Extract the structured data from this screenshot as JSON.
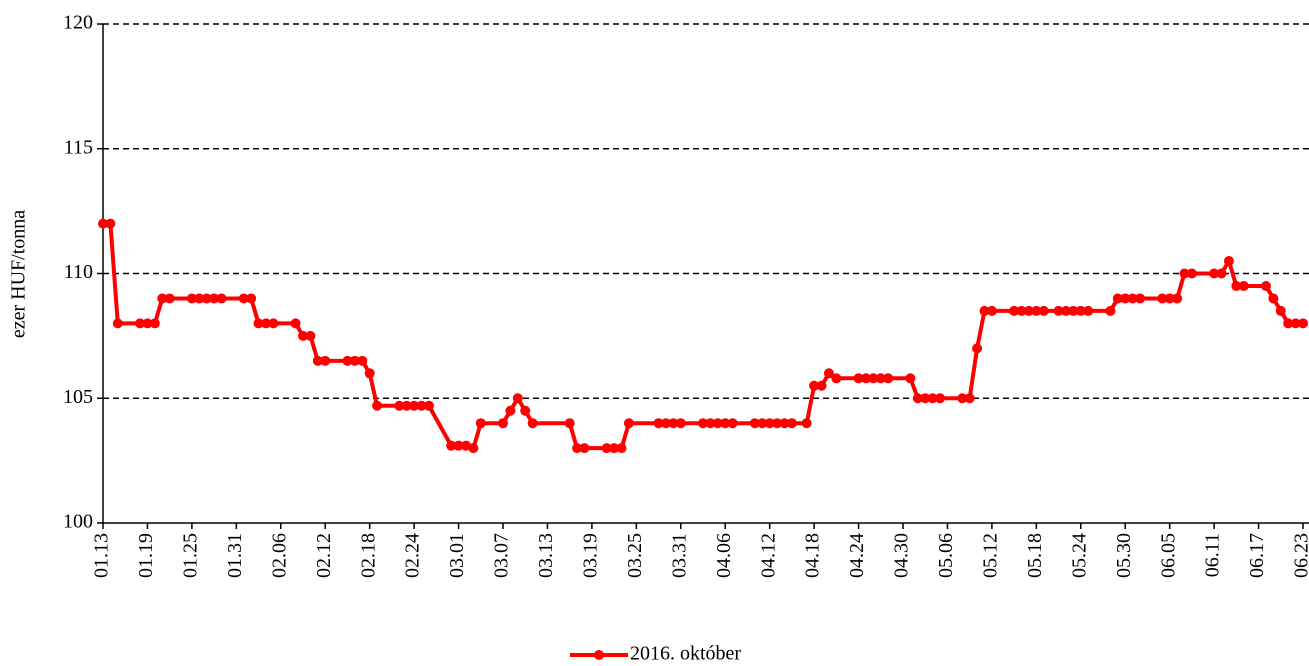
{
  "chart_data": {
    "type": "line",
    "ylabel": "ezer HUF/tonna",
    "ylim": [
      100,
      120
    ],
    "yticks": [
      100,
      105,
      110,
      115,
      120
    ],
    "grid": true,
    "legend": "bottom",
    "xticks": [
      "01.13",
      "01.19",
      "01.25",
      "01.31",
      "02.06",
      "02.12",
      "02.18",
      "02.24",
      "03.01",
      "03.07",
      "03.13",
      "03.19",
      "03.25",
      "03.31",
      "04.06",
      "04.12",
      "04.18",
      "04.24",
      "04.30",
      "05.06",
      "05.12",
      "05.18",
      "05.24",
      "05.30",
      "06.05",
      "06.11",
      "06.17",
      "06.23"
    ],
    "x": [
      "01.13",
      "01.14",
      "01.15",
      "01.18",
      "01.19",
      "01.20",
      "01.21",
      "01.22",
      "01.25",
      "01.26",
      "01.27",
      "01.28",
      "01.29",
      "02.01",
      "02.02",
      "02.03",
      "02.04",
      "02.05",
      "02.08",
      "02.09",
      "02.10",
      "02.11",
      "02.12",
      "02.15",
      "02.16",
      "02.17",
      "02.18",
      "02.19",
      "02.22",
      "02.23",
      "02.24",
      "02.25",
      "02.26",
      "02.29",
      "03.01",
      "03.02",
      "03.03",
      "03.04",
      "03.07",
      "03.08",
      "03.09",
      "03.10",
      "03.11",
      "03.16",
      "03.17",
      "03.18",
      "03.21",
      "03.22",
      "03.23",
      "03.24",
      "03.28",
      "03.29",
      "03.30",
      "03.31",
      "04.03",
      "04.04",
      "04.05",
      "04.06",
      "04.07",
      "04.10",
      "04.11",
      "04.12",
      "04.13",
      "04.14",
      "04.15",
      "04.17",
      "04.18",
      "04.19",
      "04.20",
      "04.21",
      "04.24",
      "04.25",
      "04.26",
      "04.27",
      "04.28",
      "05.01",
      "05.02",
      "05.03",
      "05.04",
      "05.05",
      "05.08",
      "05.09",
      "05.10",
      "05.11",
      "05.12",
      "05.15",
      "05.16",
      "05.17",
      "05.18",
      "05.19",
      "05.21",
      "05.22",
      "05.23",
      "05.24",
      "05.25",
      "05.28",
      "05.29",
      "05.30",
      "05.31",
      "06.01",
      "06.04",
      "06.05",
      "06.06",
      "06.07",
      "06.08",
      "06.11",
      "06.12",
      "06.13",
      "06.14",
      "06.15",
      "06.18",
      "06.19",
      "06.20",
      "06.21",
      "06.22",
      "06.23"
    ],
    "series": [
      {
        "name": "2016. október",
        "color": "#ff0000",
        "values": [
          112,
          112,
          108,
          108,
          108,
          108,
          109,
          109,
          109,
          109,
          109,
          109,
          109,
          109,
          109,
          108,
          108,
          108,
          108,
          107.5,
          107.5,
          106.5,
          106.5,
          106.5,
          106.5,
          106.5,
          106,
          104.7,
          104.7,
          104.7,
          104.7,
          104.7,
          104.7,
          103.1,
          103.1,
          103.1,
          103,
          104,
          104,
          104.5,
          105,
          104.5,
          104,
          104,
          103,
          103,
          103,
          103,
          103,
          104,
          104,
          104,
          104,
          104,
          104,
          104,
          104,
          104,
          104,
          104,
          104,
          104,
          104,
          104,
          104,
          104,
          105.5,
          105.5,
          106,
          105.8,
          105.8,
          105.8,
          105.8,
          105.8,
          105.8,
          105.8,
          105,
          105,
          105,
          105,
          105,
          105,
          107,
          108.5,
          108.5,
          108.5,
          108.5,
          108.5,
          108.5,
          108.5,
          108.5,
          108.5,
          108.5,
          108.5,
          108.5,
          108.5,
          109,
          109,
          109,
          109,
          109,
          109,
          109,
          110,
          110,
          110,
          110,
          110.5,
          109.5,
          109.5,
          109.5,
          109,
          108.5,
          108,
          108,
          108
        ]
      }
    ]
  }
}
